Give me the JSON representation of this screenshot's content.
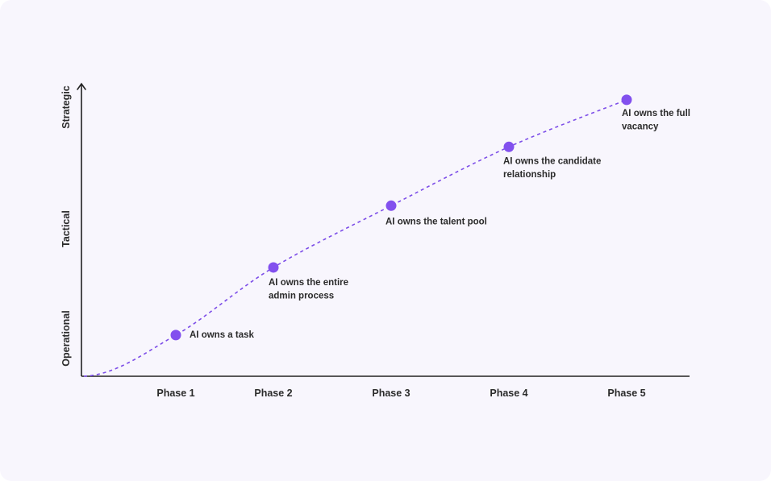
{
  "chart_data": {
    "type": "line",
    "categories": [
      "Phase 1",
      "Phase 2",
      "Phase 3",
      "Phase 4",
      "Phase 5"
    ],
    "y_levels": [
      "Operational",
      "Tactical",
      "Strategic"
    ],
    "series": [
      {
        "values": [
          0.14,
          0.37,
          0.58,
          0.78,
          0.94
        ],
        "labels": [
          [
            "AI owns a task"
          ],
          [
            "AI owns the entire",
            "admin process"
          ],
          [
            "AI owns the talent pool"
          ],
          [
            "AI owns the candidate",
            "relationship"
          ],
          [
            "AI owns the full",
            "vacancy"
          ]
        ]
      }
    ],
    "ylim": [
      0,
      1
    ],
    "grid": false,
    "colors": {
      "line": "#7c4de8",
      "point": "#8250ee",
      "axis": "#222222",
      "background": "#f8f6fd"
    }
  }
}
